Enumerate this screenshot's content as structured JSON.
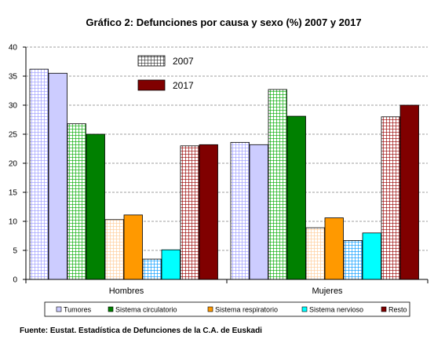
{
  "chart_data": {
    "type": "bar",
    "title": "Gráfico 2: Defunciones por causa y sexo (%) 2007 y 2017",
    "categories": [
      "Hombres",
      "Mujeres"
    ],
    "causes": [
      {
        "name": "Tumores",
        "color": "#9999ff"
      },
      {
        "name": "Sistema circulatorio",
        "color": "#00aa00"
      },
      {
        "name": "Sistema respiratorio",
        "color": "#ffcc99"
      },
      {
        "name": "Sistema nervioso",
        "color": "#0099ff"
      },
      {
        "name": "Resto",
        "color": "#990000"
      }
    ],
    "years": [
      {
        "name": "2007",
        "pattern": "grid"
      },
      {
        "name": "2017",
        "pattern": "solid"
      }
    ],
    "series": [
      {
        "name": "Tumores",
        "year": "2007",
        "values": [
          36.2,
          23.6
        ]
      },
      {
        "name": "Tumores",
        "year": "2017",
        "values": [
          35.5,
          23.2
        ]
      },
      {
        "name": "Sistema circulatorio",
        "year": "2007",
        "values": [
          26.8,
          32.7
        ]
      },
      {
        "name": "Sistema circulatorio",
        "year": "2017",
        "values": [
          25.0,
          28.1
        ]
      },
      {
        "name": "Sistema respiratorio",
        "year": "2007",
        "values": [
          10.3,
          8.9
        ]
      },
      {
        "name": "Sistema respiratorio",
        "year": "2017",
        "values": [
          11.1,
          10.6
        ]
      },
      {
        "name": "Sistema nervioso",
        "year": "2007",
        "values": [
          3.5,
          6.7
        ]
      },
      {
        "name": "Sistema nervioso",
        "year": "2017",
        "values": [
          5.1,
          8.0
        ]
      },
      {
        "name": "Resto",
        "year": "2007",
        "values": [
          23.0,
          28.0
        ]
      },
      {
        "name": "Resto",
        "year": "2017",
        "values": [
          23.2,
          30.0
        ]
      }
    ],
    "ylim": [
      0,
      40
    ],
    "yticks": [
      0,
      5,
      10,
      15,
      20,
      25,
      30,
      35,
      40
    ],
    "grid": true,
    "legend_position": "bottom",
    "year_legend_position": "top-center",
    "colors": {
      "solid": {
        "Tumores": "#ccccff",
        "Sistema circulatorio": "#008000",
        "Sistema respiratorio": "#ff9900",
        "Sistema nervioso": "#00ffff",
        "Resto": "#800000"
      },
      "grid_line": {
        "Tumores": "#9999ff",
        "Sistema circulatorio": "#00aa00",
        "Sistema respiratorio": "#ffcc99",
        "Sistema nervioso": "#0099ff",
        "Resto": "#990000"
      }
    }
  },
  "source": "Fuente: Eustat. Estadística de Defunciones de la C.A. de Euskadi"
}
